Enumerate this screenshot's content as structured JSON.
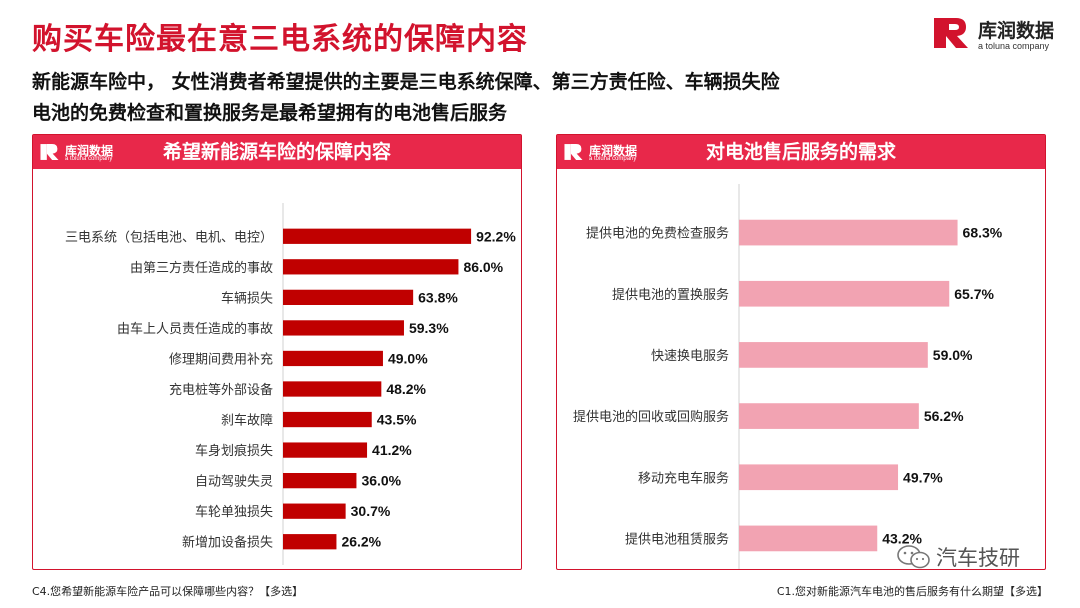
{
  "header": {
    "title": "购买车险最在意三电系统的保障内容",
    "subtitle_line1": "新能源车险中， 女性消费者希望提供的主要是三电系统保障、第三方责任险、车辆损失险",
    "subtitle_line2": "电池的免费检查和置换服务是最希望拥有的电池售后服务"
  },
  "brand": {
    "name": "库润数据",
    "tagline": "a toluna company",
    "color": "#d2132d"
  },
  "colors": {
    "accent": "#d2132d",
    "panel_header": "#e8284a",
    "bar_left": "#c00000",
    "bar_right": "#f2a3b2",
    "axis": "#d0d0d0"
  },
  "chart_data": [
    {
      "type": "bar",
      "orientation": "horizontal",
      "title": "希望新能源车险的保障内容",
      "categories": [
        "三电系统（包括电池、电机、电控）",
        "由第三方责任造成的事故",
        "车辆损失",
        "由车上人员责任造成的事故",
        "修理期间费用补充",
        "充电桩等外部设备",
        "刹车故障",
        "车身划痕损失",
        "自动驾驶失灵",
        "车轮单独损失",
        "新增加设备损失"
      ],
      "values": [
        92.2,
        86.0,
        63.8,
        59.3,
        49.0,
        48.2,
        43.5,
        41.2,
        36.0,
        30.7,
        26.2
      ],
      "value_labels": [
        "92.2%",
        "86.0%",
        "63.8%",
        "59.3%",
        "49.0%",
        "48.2%",
        "43.5%",
        "41.2%",
        "36.0%",
        "30.7%",
        "26.2%"
      ],
      "xlim": [
        0,
        100
      ],
      "unit": "%",
      "grid": false,
      "legend": "none"
    },
    {
      "type": "bar",
      "orientation": "horizontal",
      "title": "对电池售后服务的需求",
      "categories": [
        "提供电池的免费检查服务",
        "提供电池的置换服务",
        "快速换电服务",
        "提供电池的回收或回购服务",
        "移动充电车服务",
        "提供电池租赁服务"
      ],
      "values": [
        68.3,
        65.7,
        59.0,
        56.2,
        49.7,
        43.2
      ],
      "value_labels": [
        "68.3%",
        "65.7%",
        "59.0%",
        "56.2%",
        "49.7%",
        "43.2%"
      ],
      "xlim": [
        0,
        100
      ],
      "unit": "%",
      "grid": false,
      "legend": "none"
    }
  ],
  "footnotes": {
    "left": "C4.您希望新能源车险产品可以保障哪些内容？【多选】",
    "right": "C1.您对新能源汽车电池的售后服务有什么期望【多选】"
  },
  "watermark": {
    "icon": "wechat-icon",
    "text": "汽车技研"
  }
}
